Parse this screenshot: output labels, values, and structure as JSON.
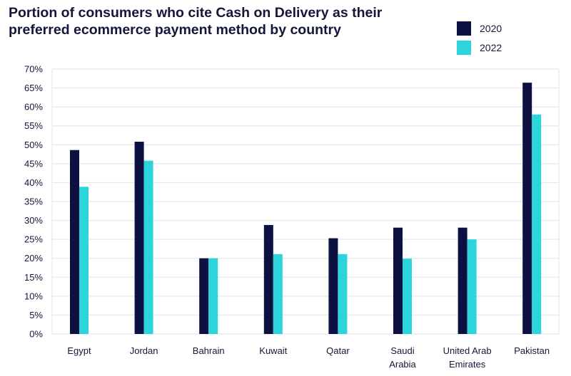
{
  "chart_data": {
    "type": "bar",
    "title": "Portion of consumers who cite Cash on Delivery as their preferred ecommerce payment method by country",
    "categories": [
      "Egypt",
      "Jordan",
      "Bahrain",
      "Kuwait",
      "Qatar",
      "Saudi Arabia",
      "United Arab Emirates",
      "Pakistan"
    ],
    "category_lines": [
      [
        "Egypt"
      ],
      [
        "Jordan"
      ],
      [
        "Bahrain"
      ],
      [
        "Kuwait"
      ],
      [
        "Qatar"
      ],
      [
        "Saudi",
        "Arabia"
      ],
      [
        "United Arab",
        "Emirates"
      ],
      [
        "Pakistan"
      ]
    ],
    "series": [
      {
        "name": "2020",
        "color": "#0c1142",
        "values": [
          48.6,
          50.8,
          20,
          28.8,
          25.3,
          28.1,
          28.1,
          66.4
        ]
      },
      {
        "name": "2022",
        "color": "#2cd4dc",
        "values": [
          38.9,
          45.8,
          20,
          21.1,
          21.1,
          19.9,
          25.0,
          58.0
        ]
      }
    ],
    "ylim": [
      0,
      70
    ],
    "yticks": [
      0,
      5,
      10,
      15,
      20,
      25,
      30,
      35,
      40,
      45,
      50,
      55,
      60,
      65,
      70
    ],
    "ytick_format": "%",
    "xlabel": "",
    "ylabel": "",
    "grid": true,
    "legend": "top-right"
  }
}
